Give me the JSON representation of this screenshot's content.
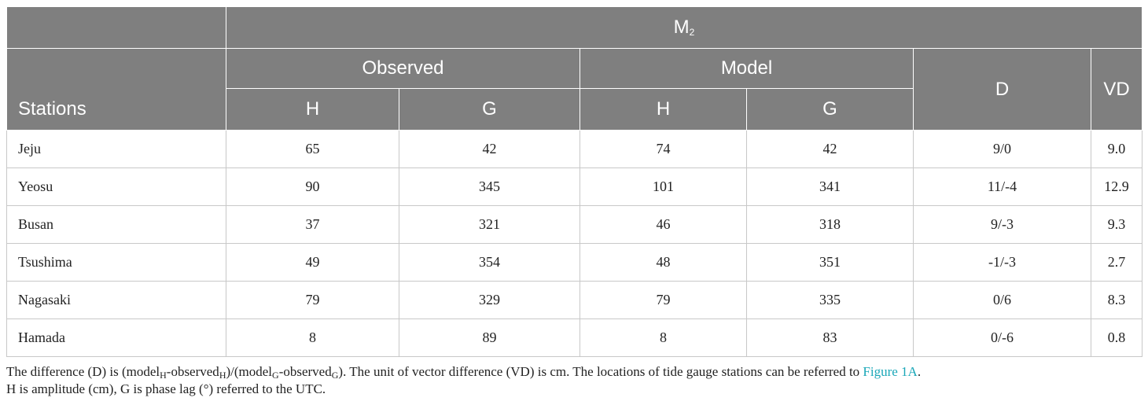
{
  "header": {
    "constituent_base": "M",
    "constituent_sub": "2",
    "observed": "Observed",
    "model": "Model",
    "stations": "Stations",
    "d": "D",
    "vd": "VD",
    "h": "H",
    "g": "G"
  },
  "rows": [
    {
      "station": "Jeju",
      "obs_h": "65",
      "obs_g": "42",
      "mod_h": "74",
      "mod_g": "42",
      "d": "9/0",
      "vd": "9.0"
    },
    {
      "station": "Yeosu",
      "obs_h": "90",
      "obs_g": "345",
      "mod_h": "101",
      "mod_g": "341",
      "d": "11/-4",
      "vd": "12.9"
    },
    {
      "station": "Busan",
      "obs_h": "37",
      "obs_g": "321",
      "mod_h": "46",
      "mod_g": "318",
      "d": "9/-3",
      "vd": "9.3"
    },
    {
      "station": "Tsushima",
      "obs_h": "49",
      "obs_g": "354",
      "mod_h": "48",
      "mod_g": "351",
      "d": "-1/-3",
      "vd": "2.7"
    },
    {
      "station": "Nagasaki",
      "obs_h": "79",
      "obs_g": "329",
      "mod_h": "79",
      "mod_g": "335",
      "d": "0/6",
      "vd": "8.3"
    },
    {
      "station": "Hamada",
      "obs_h": "8",
      "obs_g": "89",
      "mod_h": "8",
      "mod_g": "83",
      "d": "0/-6",
      "vd": "0.8"
    }
  ],
  "notes": {
    "line1_a": "The difference (D) is (model",
    "sub_h1": "H",
    "line1_b": "-observed",
    "sub_h2": "H",
    "line1_c": ")/(model",
    "sub_g1": "G",
    "line1_d": "-observed",
    "sub_g2": "G",
    "line1_e": "). The unit of vector difference (VD) is cm. The locations of tide gauge stations can be referred to ",
    "link": "Figure 1A",
    "line1_f": ".",
    "line2": "H is amplitude (cm), G is phase lag (°) referred to the UTC."
  }
}
